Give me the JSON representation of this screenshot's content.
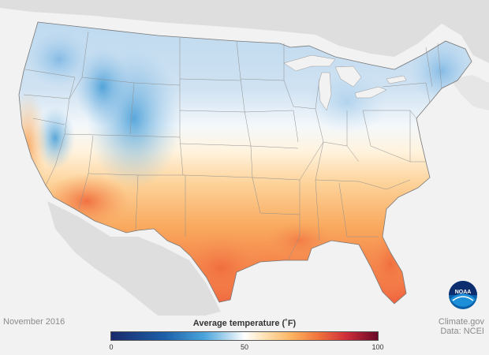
{
  "map": {
    "period": "November 2016",
    "legend": {
      "title": "Average temperature (˚F)",
      "min": "0",
      "mid": "50",
      "max": "100"
    },
    "credit": {
      "line1": "Climate.gov",
      "line2": "Data: NCEI"
    },
    "logo": {
      "text": "NOAA",
      "icon": "noaa-logo-icon"
    },
    "colors": {
      "cold": "#4aa5dc",
      "neutral": "#ffffff",
      "warm": "#f0713c",
      "hot": "#cf2e3a"
    }
  }
}
